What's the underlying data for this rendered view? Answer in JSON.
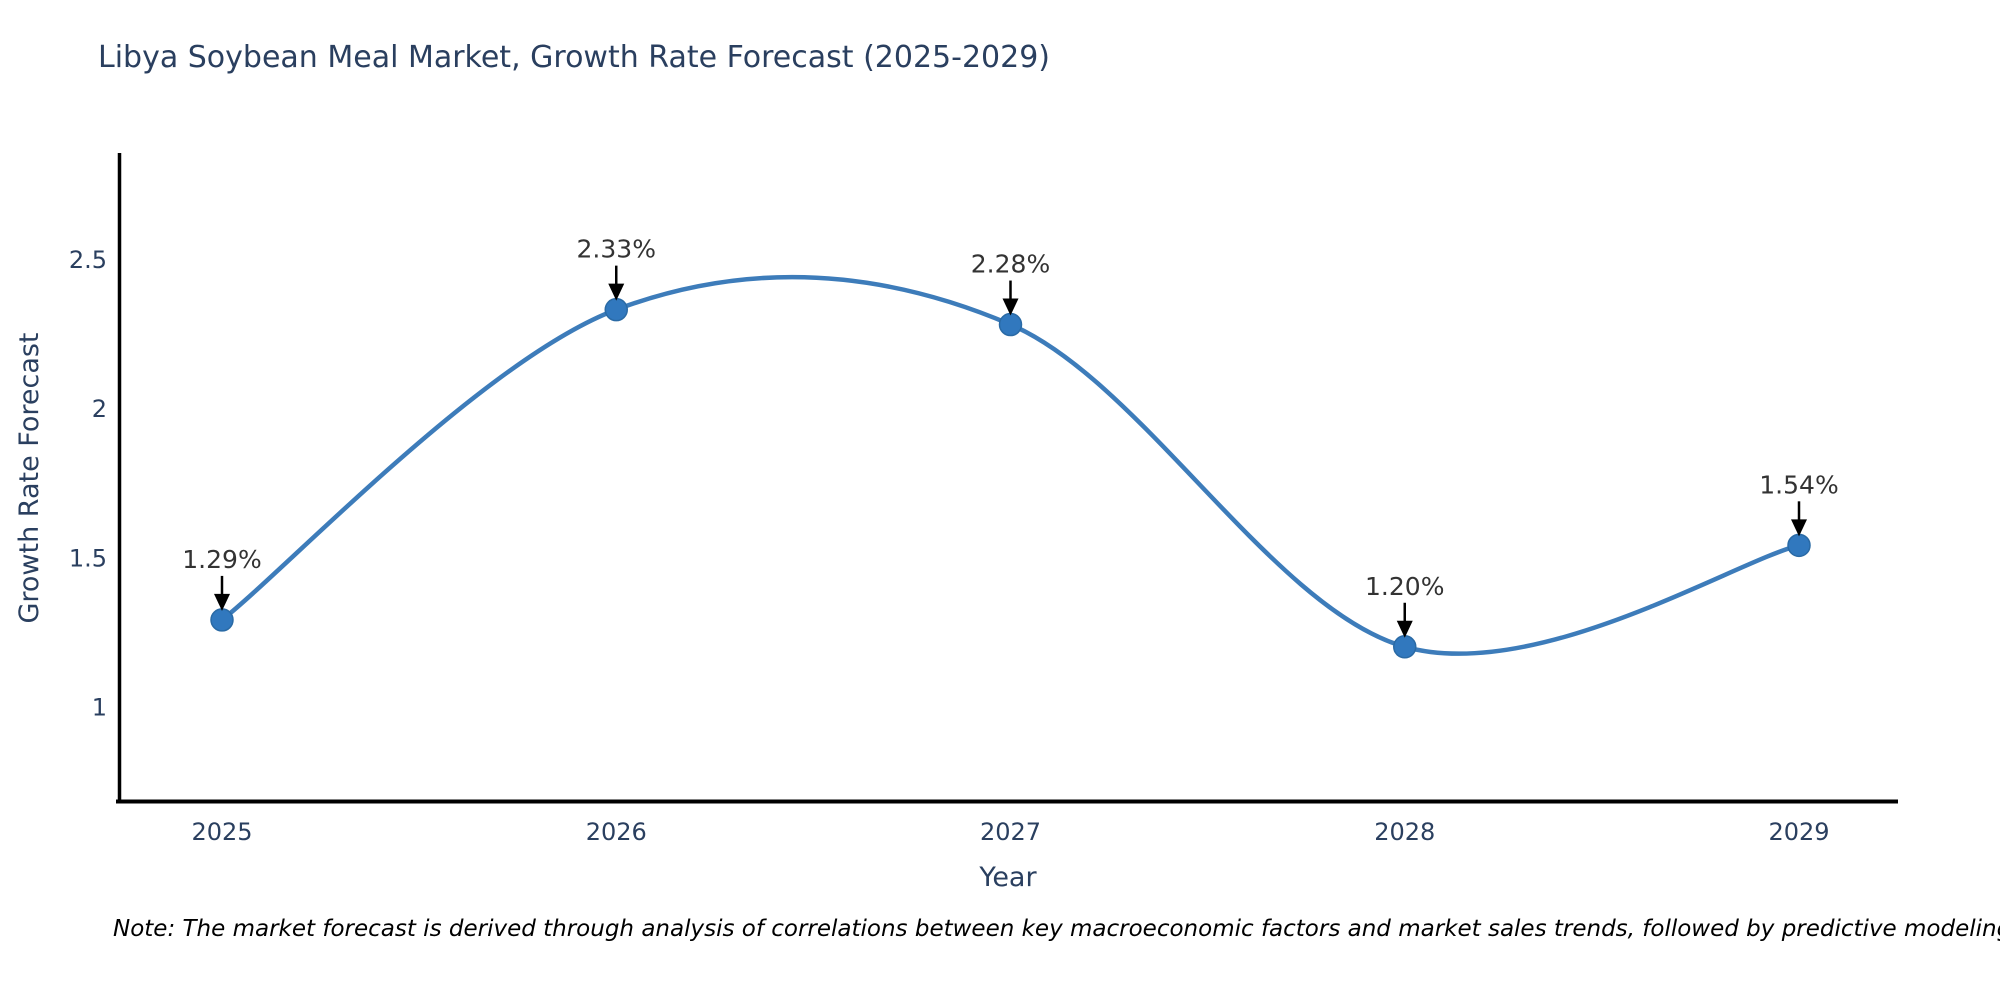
{
  "page": {
    "title": "Libya Soybean Meal Market, Growth Rate Forecast (2025-2029)",
    "note": "Note: The market forecast is derived through analysis of correlations between key macroeconomic factors and market sales trends, followed by predictive modeling to project future sales"
  },
  "chart_data": {
    "type": "line",
    "title": "Libya Soybean Meal Market, Growth Rate Forecast (2025-2029)",
    "xlabel": "Year",
    "ylabel": "Growth Rate Forecast",
    "categories": [
      "2025",
      "2026",
      "2027",
      "2028",
      "2029"
    ],
    "values": [
      1.29,
      2.33,
      2.28,
      1.2,
      1.54
    ],
    "point_labels": [
      "1.29%",
      "2.33%",
      "2.28%",
      "1.20%",
      "1.54%"
    ],
    "yticks": [
      1,
      1.5,
      2,
      2.5
    ],
    "ytick_labels": [
      "1",
      "1.5",
      "2",
      "2.5"
    ],
    "ylim": [
      0.683,
      2.855
    ],
    "line_shape": "spline",
    "grid": false,
    "legend": "none",
    "annotation_arrows": "black-down-arrows",
    "colors": {
      "line": "#3d7cba",
      "marker_fill": "#3178be",
      "marker_edge": "#2a6aa5",
      "axis_line": "#000000",
      "axis_text": "#2a3f5f",
      "annotation_text": "#333333",
      "background": "#ffffff"
    }
  }
}
